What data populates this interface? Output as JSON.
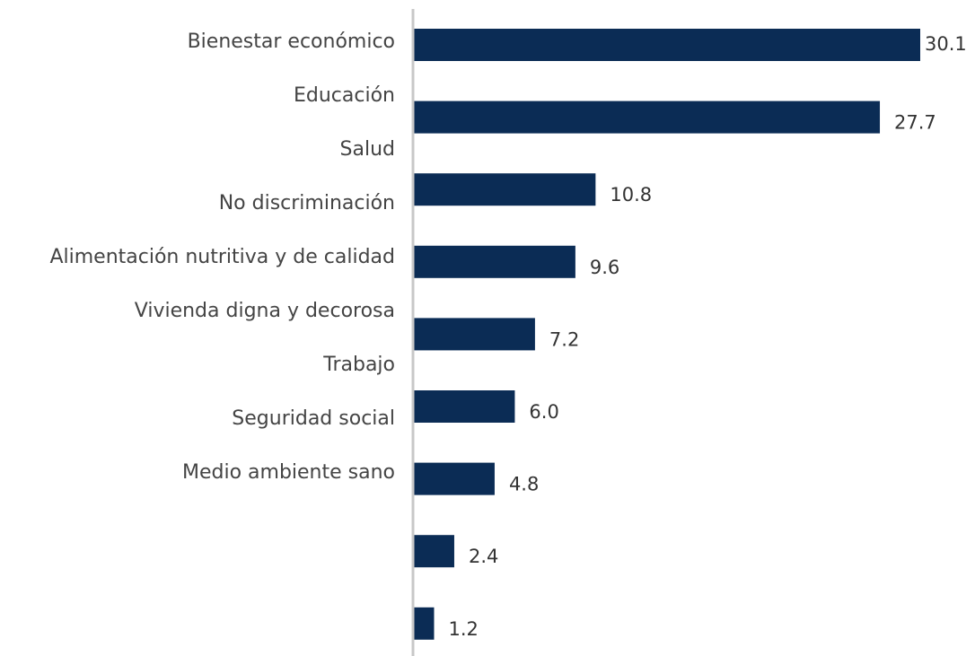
{
  "chart_data": {
    "type": "bar",
    "orientation": "horizontal",
    "title": "",
    "xlabel": "",
    "ylabel": "",
    "category_labels": [
      "Bienestar económico",
      "Educación",
      "Salud",
      "No discriminación",
      "Alimentación nutritiva y de calidad",
      "Vivienda digna y decorosa",
      "Trabajo",
      "Seguridad social",
      "Medio ambiente sano"
    ],
    "values": [
      30.1,
      27.7,
      10.8,
      9.6,
      7.2,
      6.0,
      4.8,
      2.4,
      1.2
    ],
    "value_labels": [
      "30.1",
      "27.7",
      "10.8",
      "9.6",
      "7.2",
      "6.0",
      "4.8",
      "2.4",
      "1.2"
    ],
    "xlim": [
      0,
      30.1
    ],
    "grid": false,
    "legend": "none",
    "colors": {
      "bar": "#0b2c55",
      "axis": "#c8c8c8"
    }
  }
}
